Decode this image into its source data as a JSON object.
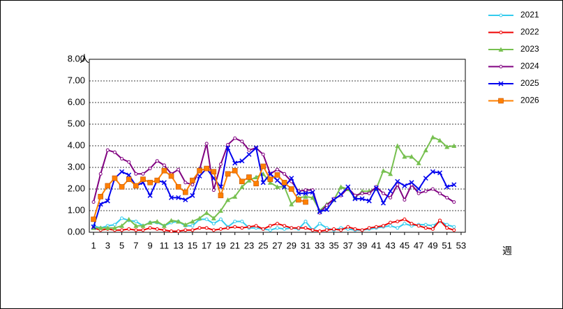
{
  "chart_data": {
    "type": "line",
    "unit_label": "人",
    "x_label": "週",
    "x": [
      1,
      2,
      3,
      4,
      5,
      6,
      7,
      8,
      9,
      10,
      11,
      12,
      13,
      14,
      15,
      16,
      17,
      18,
      19,
      20,
      21,
      22,
      23,
      24,
      25,
      26,
      27,
      28,
      29,
      30,
      31,
      32,
      33,
      34,
      35,
      36,
      37,
      38,
      39,
      40,
      41,
      42,
      43,
      44,
      45,
      46,
      47,
      48,
      49,
      50,
      51,
      52,
      53
    ],
    "xlim": [
      0.4,
      53.6
    ],
    "xticks": [
      1,
      3,
      5,
      7,
      9,
      11,
      13,
      15,
      17,
      19,
      21,
      23,
      25,
      27,
      29,
      31,
      33,
      35,
      37,
      39,
      41,
      43,
      45,
      47,
      49,
      51,
      53
    ],
    "ylim": [
      0,
      8
    ],
    "yticks": [
      {
        "value": 0,
        "label": "0.00"
      },
      {
        "value": 1,
        "label": "1.00"
      },
      {
        "value": 2,
        "label": "2.00"
      },
      {
        "value": 3,
        "label": "3.00"
      },
      {
        "value": 4,
        "label": "4.00"
      },
      {
        "value": 5,
        "label": "5.00"
      },
      {
        "value": 6,
        "label": "6.00"
      },
      {
        "value": 7,
        "label": "7.00"
      },
      {
        "value": 8,
        "label": "8.00"
      }
    ],
    "grid": true,
    "legend": "right",
    "series": [
      {
        "name": "2021",
        "color": "#33ccee",
        "marker": "dot",
        "values": [
          0.3,
          0.2,
          0.3,
          0.35,
          0.65,
          0.55,
          0.5,
          0.3,
          0.45,
          0.45,
          0.3,
          0.45,
          0.5,
          0.3,
          0.3,
          0.6,
          0.6,
          0.4,
          0.6,
          0.25,
          0.5,
          0.5,
          0.2,
          0.2,
          0.15,
          0.1,
          0.2,
          0.15,
          0.2,
          0.15,
          0.5,
          0.1,
          0.4,
          0.2,
          0.1,
          0.2,
          0.15,
          0.1,
          0.1,
          0.15,
          0.2,
          0.25,
          0.3,
          0.2,
          0.4,
          0.3,
          0.35,
          0.35,
          0.3,
          0.5,
          0.35,
          0.25,
          null
        ]
      },
      {
        "name": "2022",
        "color": "#ee0000",
        "marker": "dot",
        "values": [
          0.2,
          0.1,
          0.15,
          0.1,
          0.1,
          0.15,
          0.1,
          0.1,
          0.2,
          0.15,
          0.1,
          0.05,
          0.05,
          0.1,
          0.1,
          0.2,
          0.2,
          0.1,
          0.15,
          0.2,
          0.25,
          0.2,
          0.25,
          0.3,
          0.15,
          0.3,
          0.4,
          0.3,
          0.2,
          0.2,
          0.2,
          0.1,
          0.05,
          0.1,
          0.15,
          0.1,
          0.25,
          0.15,
          0.1,
          0.2,
          0.25,
          0.3,
          0.45,
          0.5,
          0.6,
          0.4,
          0.3,
          0.2,
          0.15,
          0.55,
          0.2,
          0.1,
          null
        ]
      },
      {
        "name": "2023",
        "color": "#77c050",
        "marker": "triangle",
        "values": [
          0.2,
          0.2,
          0.2,
          0.2,
          0.3,
          0.6,
          0.3,
          0.3,
          0.45,
          0.5,
          0.3,
          0.55,
          0.5,
          0.35,
          0.5,
          0.65,
          0.9,
          0.65,
          1.0,
          1.5,
          1.65,
          2.1,
          2.4,
          2.55,
          2.7,
          2.3,
          2.1,
          2.1,
          1.3,
          1.6,
          1.65,
          1.6,
          1.0,
          1.3,
          1.5,
          2.1,
          2.0,
          1.6,
          1.9,
          1.9,
          2.0,
          2.85,
          2.7,
          4.0,
          3.5,
          3.5,
          3.2,
          3.8,
          4.4,
          4.25,
          3.95,
          4.0,
          null
        ]
      },
      {
        "name": "2024",
        "color": "#800080",
        "marker": "dot",
        "values": [
          1.4,
          2.7,
          3.8,
          3.7,
          3.4,
          3.25,
          2.7,
          2.7,
          2.95,
          3.3,
          3.1,
          2.7,
          2.9,
          2.3,
          2.2,
          2.9,
          4.1,
          1.95,
          3.15,
          4.05,
          4.35,
          4.2,
          3.8,
          3.9,
          3.6,
          2.7,
          2.9,
          2.7,
          2.35,
          1.9,
          1.95,
          1.95,
          0.9,
          1.25,
          1.55,
          1.7,
          2.05,
          1.7,
          1.8,
          1.8,
          2.1,
          1.8,
          1.6,
          2.2,
          1.5,
          2.2,
          1.8,
          1.9,
          2.0,
          1.8,
          1.6,
          1.4,
          null
        ]
      },
      {
        "name": "2025",
        "color": "#0000ee",
        "marker": "cross",
        "values": [
          0.25,
          1.3,
          1.45,
          2.5,
          2.8,
          2.65,
          2.15,
          2.3,
          1.7,
          2.4,
          2.3,
          1.6,
          1.6,
          1.5,
          1.7,
          2.6,
          2.95,
          2.5,
          2.1,
          3.9,
          3.2,
          3.3,
          3.6,
          3.9,
          2.3,
          2.7,
          2.4,
          2.1,
          2.5,
          1.8,
          1.8,
          1.85,
          0.95,
          1.05,
          1.5,
          1.75,
          2.1,
          1.55,
          1.55,
          1.45,
          2.05,
          1.35,
          1.9,
          2.35,
          2.15,
          2.3,
          2.0,
          2.5,
          2.8,
          2.75,
          2.1,
          2.2,
          null
        ]
      },
      {
        "name": "2026",
        "color": "#ff8000",
        "marker": "square",
        "values": [
          0.6,
          1.65,
          2.15,
          2.5,
          2.1,
          2.45,
          2.15,
          2.45,
          2.3,
          2.4,
          2.85,
          2.6,
          2.1,
          1.85,
          2.4,
          2.85,
          2.95,
          2.8,
          1.7,
          2.7,
          2.85,
          2.35,
          2.55,
          2.25,
          3.05,
          2.45,
          2.65,
          2.3,
          2.0,
          1.5,
          1.4,
          null,
          null,
          null,
          null,
          null,
          null,
          null,
          null,
          null,
          null,
          null,
          null,
          null,
          null,
          null,
          null,
          null,
          null,
          null,
          null,
          null,
          null
        ]
      }
    ]
  }
}
